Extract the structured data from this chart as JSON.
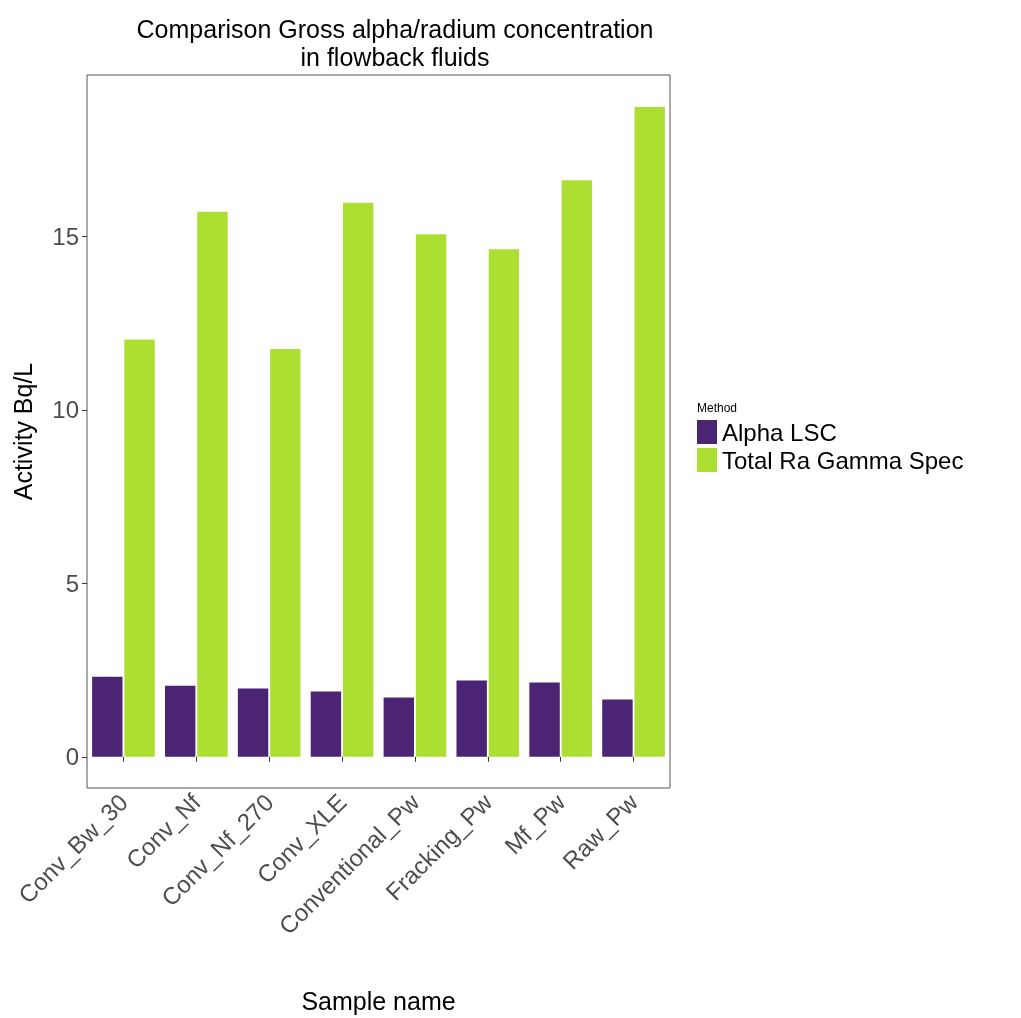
{
  "chart_data": {
    "type": "bar",
    "title": "Comparison Gross alpha/radium concentration\nin flowback fluids",
    "xlabel": "Sample name",
    "ylabel": "Activity Bq/L",
    "legend_title": "Method",
    "categories": [
      "Conv_Bw_30",
      "Conv_Nf",
      "Conv_Nf_270",
      "Conv_XLE",
      "Conventional_Pw",
      "Fracking_Pw",
      "Mf_Pw",
      "Raw_Pw"
    ],
    "series": [
      {
        "name": "Alpha LSC",
        "color": "#4b2574",
        "values": [
          2.31,
          2.05,
          1.97,
          1.88,
          1.71,
          2.2,
          2.14,
          1.65
        ]
      },
      {
        "name": "Total Ra Gamma Spec",
        "color": "#addf33",
        "values": [
          12.03,
          15.71,
          11.75,
          15.97,
          15.06,
          14.63,
          16.62,
          18.73
        ]
      }
    ],
    "ylim": [
      -0.9,
      19.65
    ],
    "yticks": [
      0,
      5,
      10,
      15
    ],
    "grid": false,
    "legend": "right"
  }
}
